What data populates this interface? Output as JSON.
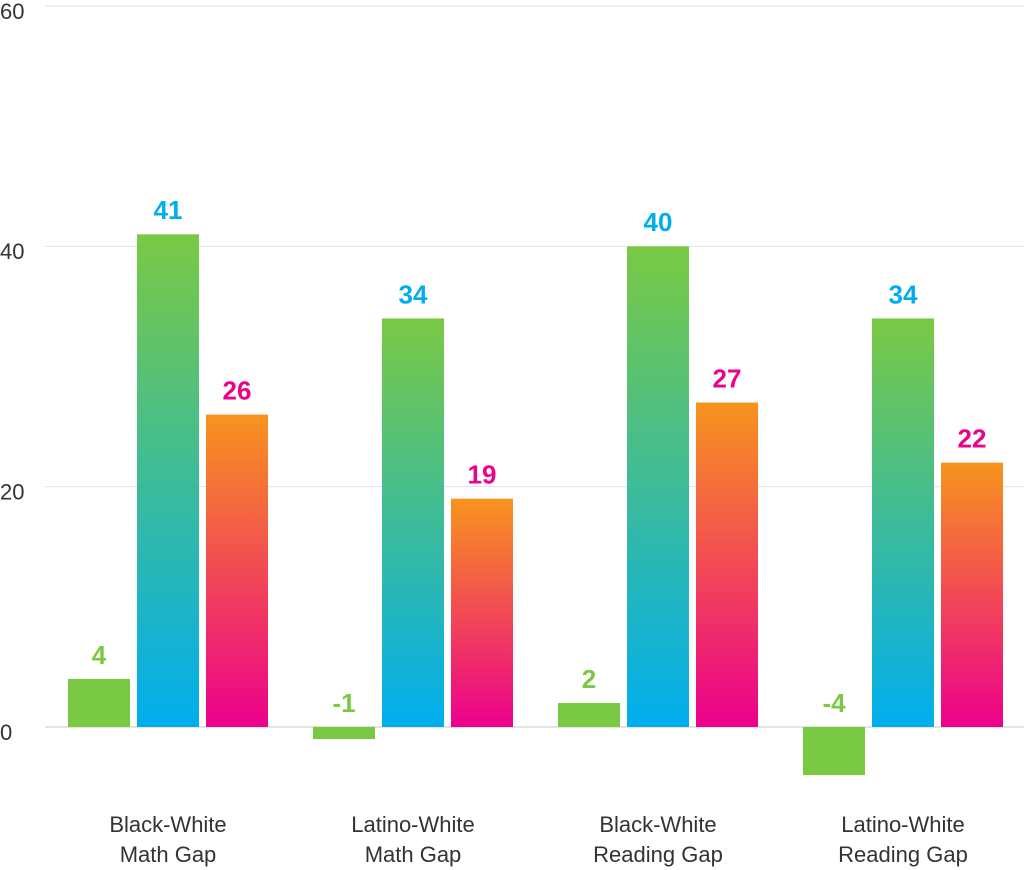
{
  "chart_data": {
    "type": "bar",
    "categories": [
      "Black-White Math Gap",
      "Latino-White Math Gap",
      "Black-White Reading Gap",
      "Latino-White Reading Gap"
    ],
    "series": [
      {
        "color": "#7ac943",
        "values": [
          4,
          -1,
          2,
          -4
        ]
      },
      {
        "color": "#00aeef",
        "gradient": [
          "#7ac943",
          "#00aeef"
        ],
        "values": [
          41,
          34,
          40,
          34
        ]
      },
      {
        "color": "#ec008c",
        "gradient": [
          "#f7941d",
          "#ec008c"
        ],
        "values": [
          26,
          19,
          27,
          22
        ]
      }
    ],
    "ylim": [
      0,
      60
    ],
    "yticks": [
      0,
      20,
      40,
      60
    ],
    "grid": true
  }
}
